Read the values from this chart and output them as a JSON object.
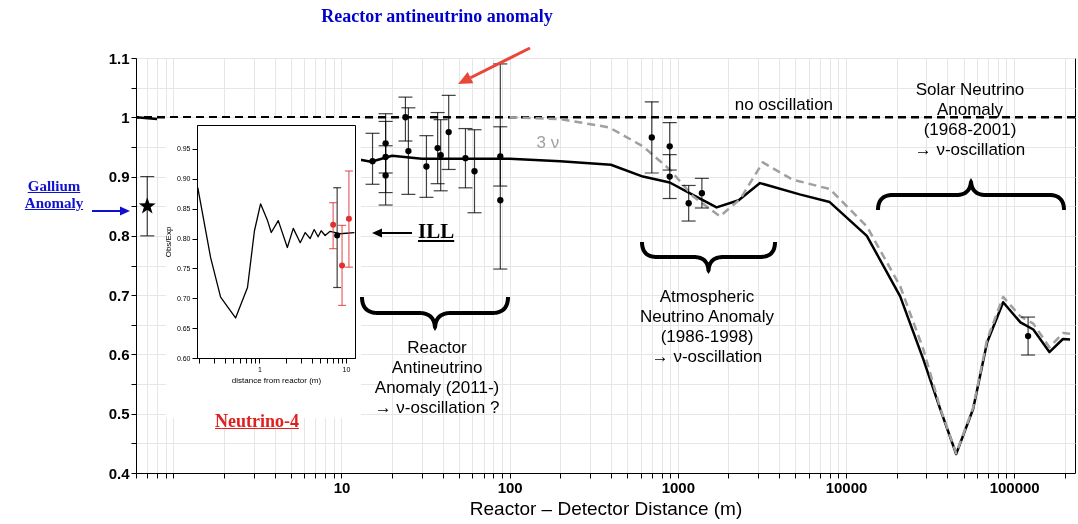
{
  "chart_data": [
    {
      "type": "line",
      "title": "Reactor antineutrino anomaly",
      "xlabel": "Reactor – Detector Distance (m)",
      "log": "x",
      "grid": true,
      "xlim": [
        0.6,
        230000
      ],
      "ylim": [
        0.4,
        1.1
      ],
      "xticks": [
        {
          "value": 0.6,
          "label": null
        },
        {
          "value": 0.7,
          "label": null
        },
        {
          "value": 0.8,
          "label": null
        },
        {
          "value": 0.9,
          "label": null
        },
        {
          "value": 1,
          "label": null
        },
        {
          "value": 2,
          "label": null
        },
        {
          "value": 3,
          "label": null
        },
        {
          "value": 4,
          "label": null
        },
        {
          "value": 5,
          "label": null
        },
        {
          "value": 6,
          "label": null
        },
        {
          "value": 7,
          "label": null
        },
        {
          "value": 8,
          "label": null
        },
        {
          "value": 9,
          "label": null
        },
        10,
        {
          "value": 20,
          "label": null
        },
        {
          "value": 30,
          "label": null
        },
        {
          "value": 40,
          "label": null
        },
        {
          "value": 50,
          "label": null
        },
        {
          "value": 60,
          "label": null
        },
        {
          "value": 70,
          "label": null
        },
        {
          "value": 80,
          "label": null
        },
        {
          "value": 90,
          "label": null
        },
        100,
        {
          "value": 200,
          "label": null
        },
        {
          "value": 300,
          "label": null
        },
        {
          "value": 400,
          "label": null
        },
        {
          "value": 500,
          "label": null
        },
        {
          "value": 600,
          "label": null
        },
        {
          "value": 700,
          "label": null
        },
        {
          "value": 800,
          "label": null
        },
        {
          "value": 900,
          "label": null
        },
        1000,
        {
          "value": 2000,
          "label": null
        },
        {
          "value": 3000,
          "label": null
        },
        {
          "value": 4000,
          "label": null
        },
        {
          "value": 5000,
          "label": null
        },
        {
          "value": 6000,
          "label": null
        },
        {
          "value": 7000,
          "label": null
        },
        {
          "value": 8000,
          "label": null
        },
        {
          "value": 9000,
          "label": null
        },
        10000,
        {
          "value": 20000,
          "label": null
        },
        {
          "value": 30000,
          "label": null
        },
        {
          "value": 40000,
          "label": null
        },
        {
          "value": 50000,
          "label": null
        },
        {
          "value": 60000,
          "label": null
        },
        {
          "value": 70000,
          "label": null
        },
        {
          "value": 80000,
          "label": null
        },
        {
          "value": 90000,
          "label": null
        },
        100000,
        {
          "value": 200000,
          "label": null
        }
      ],
      "yticks": [
        0.4,
        {
          "value": 0.45,
          "label": null
        },
        0.5,
        {
          "value": 0.55,
          "label": null
        },
        0.6,
        {
          "value": 0.65,
          "label": null
        },
        0.7,
        {
          "value": 0.75,
          "label": null
        },
        0.8,
        {
          "value": 0.85,
          "label": null
        },
        0.9,
        {
          "value": 0.95,
          "label": null
        },
        1,
        {
          "value": 1.05,
          "label": null
        },
        1.1
      ],
      "ref_lines": [
        {
          "axis": "y",
          "value": 1,
          "label": "no oscillation",
          "color": "#000000",
          "line_style": "dashed"
        }
      ],
      "series": [
        {
          "type": "line",
          "color": "#000000",
          "line_style": "solid",
          "x": [
            0.6,
            0.8,
            4,
            12,
            15,
            20,
            30,
            50,
            100,
            200,
            400,
            620,
            895,
            1160,
            1700,
            2300,
            3080,
            5300,
            8000,
            13300,
            21000,
            28800,
            36300,
            45200,
            57000,
            69000,
            86000,
            109000,
            130000,
            162000,
            195000,
            215000
          ],
          "values": [
            1.0,
            0.997,
            null,
            0.93,
            0.925,
            0.935,
            0.93,
            0.93,
            0.93,
            0.926,
            0.92,
            0.9,
            0.89,
            0.873,
            0.848,
            0.86,
            0.889,
            0.87,
            0.857,
            0.8,
            0.698,
            0.592,
            0.508,
            0.432,
            0.508,
            0.62,
            0.688,
            0.654,
            0.642,
            0.604,
            0.626,
            0.625
          ]
        },
        {
          "type": "line",
          "name": "3 ν",
          "color": "#a0a0a0",
          "line_style": "dashed",
          "x": [
            100,
            199,
            390,
            620,
            895,
            1230,
            1780,
            2350,
            3200,
            4800,
            8000,
            13300,
            21000,
            28800,
            36300,
            45200,
            57000,
            69000,
            86000,
            109000,
            130000,
            162000,
            195000,
            215000
          ],
          "values": [
            1.0,
            0.997,
            0.983,
            0.951,
            0.912,
            0.867,
            0.833,
            0.862,
            0.924,
            0.895,
            0.879,
            0.816,
            0.715,
            0.609,
            0.51,
            0.433,
            0.51,
            0.625,
            0.697,
            0.664,
            0.652,
            0.612,
            0.636,
            0.635
          ]
        },
        {
          "type": "scatter",
          "color": "#000000",
          "marker": "circle",
          "x": [
            15.3,
            18.3,
            18.3,
            18.3,
            24,
            25,
            32,
            37.3,
            38.9,
            43.4,
            54.6,
            61.8,
            88,
            88,
            700,
            895,
            895,
            1160,
            1390,
            121000
          ],
          "values": [
            0.926,
            0.956,
            0.933,
            0.902,
            1.0,
            0.943,
            0.917,
            0.948,
            0.936,
            0.975,
            0.931,
            0.909,
            0.934,
            0.86,
            0.966,
            0.951,
            0.9,
            0.855,
            0.872,
            0.631
          ],
          "errors": [
            [
              0.887,
              0.973
            ],
            0.05,
            0.06,
            0.05,
            [
              0.96,
              1.034
            ],
            0.073,
            0.052,
            0.06,
            0.06,
            [
              0.912,
              1.037
            ],
            0.05,
            0.07,
            0.05,
            [
              0.744,
              1.09
            ],
            0.06,
            0.04,
            0.037,
            0.03,
            0.025,
            0.032
          ]
        },
        {
          "type": "scatter",
          "color": "#000000",
          "marker": "star",
          "x": [
            0.7
          ],
          "values": [
            0.85
          ],
          "errors": [
            [
              0.8,
              0.9
            ]
          ]
        }
      ],
      "annotations": [
        "Gallium\nAnomaly",
        "ILL",
        "Neutrino-4",
        "Reactor\nAntineutrino\nAnomaly (2011-)\n→ ν-oscillation ?",
        "Atmospheric\nNeutrino Anomaly\n(1986-1998)\n→ ν-oscillation",
        "Solar Neutrino\nAnomaly\n(1968-2001)\n→ ν-oscillation"
      ]
    },
    {
      "type": "line",
      "xlabel": "distance from reactor (m)",
      "ylabel": "Obs/Exp",
      "log": "x",
      "xlim": [
        0.19,
        12.7
      ],
      "ylim": [
        0.6,
        0.99
      ],
      "xticks": [
        {
          "value": 0.2,
          "label": null
        },
        {
          "value": 0.3,
          "label": null
        },
        {
          "value": 0.4,
          "label": null
        },
        {
          "value": 0.5,
          "label": null
        },
        {
          "value": 0.6,
          "label": null
        },
        {
          "value": 0.7,
          "label": null
        },
        {
          "value": 0.8,
          "label": null
        },
        {
          "value": 0.9,
          "label": null
        },
        1,
        {
          "value": 2,
          "label": null
        },
        {
          "value": 3,
          "label": null
        },
        {
          "value": 4,
          "label": null
        },
        {
          "value": 5,
          "label": null
        },
        {
          "value": 6,
          "label": null
        },
        {
          "value": 7,
          "label": null
        },
        {
          "value": 8,
          "label": null
        },
        {
          "value": 9,
          "label": null
        },
        10
      ],
      "yticks": [
        {
          "value": 0.6,
          "label": "0.60"
        },
        0.65,
        {
          "value": 0.7,
          "label": "0.70"
        },
        0.75,
        {
          "value": 0.8,
          "label": "0.80"
        },
        0.85,
        {
          "value": 0.9,
          "label": "0.90"
        },
        0.95
      ],
      "series": [
        {
          "type": "line",
          "color": "#000000",
          "line_style": "solid",
          "x": [
            0.194,
            0.273,
            0.356,
            0.53,
            0.728,
            0.876,
            1.03,
            1.24,
            1.37,
            1.65,
            2.1,
            2.46,
            2.96,
            3.38,
            3.85,
            4.29,
            4.76,
            5.16,
            5.74,
            6.55,
            8.5,
            12.5
          ],
          "values": [
            0.885,
            0.768,
            0.702,
            0.667,
            0.718,
            0.813,
            0.858,
            0.83,
            0.81,
            0.83,
            0.785,
            0.817,
            0.793,
            0.81,
            0.8,
            0.815,
            0.803,
            0.813,
            0.805,
            0.812,
            0.808,
            0.81
          ]
        },
        {
          "type": "scatter",
          "color": "#000000",
          "marker": "circle",
          "x": [
            7.9
          ],
          "values": [
            0.805
          ],
          "errors": [
            [
              0.718,
              0.885
            ]
          ]
        },
        {
          "type": "scatter",
          "color": "#e03030",
          "marker": "circle",
          "x": [
            7.1,
            9.0,
            10.8
          ],
          "values": [
            0.823,
            0.755,
            0.833
          ],
          "errors": [
            [
              0.783,
              0.86
            ],
            [
              0.688,
              0.822
            ],
            [
              0.752,
              0.913
            ]
          ]
        }
      ]
    }
  ]
}
